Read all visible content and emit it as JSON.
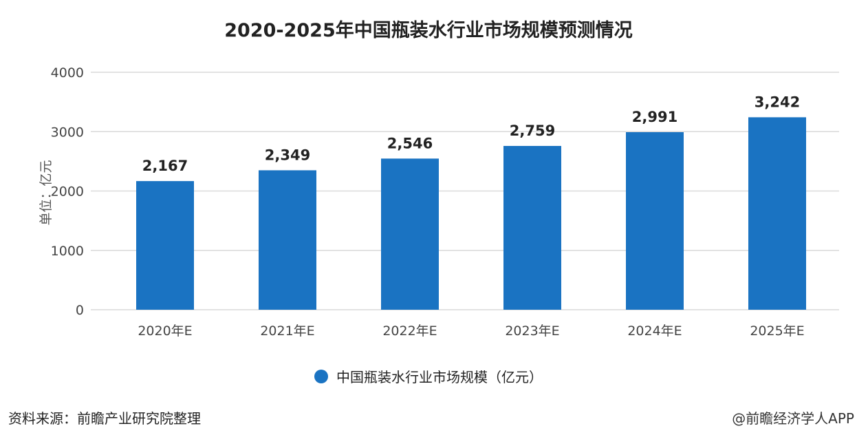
{
  "chart_data": {
    "type": "bar",
    "title": "2020-2025年中国瓶装水行业市场规模预测情况",
    "ylabel": "单位：亿元",
    "xlabel": "",
    "categories": [
      "2020年E",
      "2021年E",
      "2022年E",
      "2023年E",
      "2024年E",
      "2025年E"
    ],
    "series": [
      {
        "name": "中国瓶装水行业市场规模（亿元）",
        "values": [
          2167,
          2349,
          2546,
          2759,
          2991,
          3242
        ]
      }
    ],
    "data_labels": [
      "2,167",
      "2,349",
      "2,546",
      "2,759",
      "2,991",
      "3,242"
    ],
    "ylim": [
      0,
      4000
    ],
    "yticks": [
      "0",
      "1000",
      "2000",
      "3000",
      "4000"
    ],
    "grid": true,
    "legend": "bottom",
    "colors": {
      "bar": "#1a73c2",
      "grid": "#d9d9d9"
    }
  },
  "footer": {
    "source": "资料来源：前瞻产业研究院整理",
    "credit": "@前瞻经济学人APP"
  }
}
